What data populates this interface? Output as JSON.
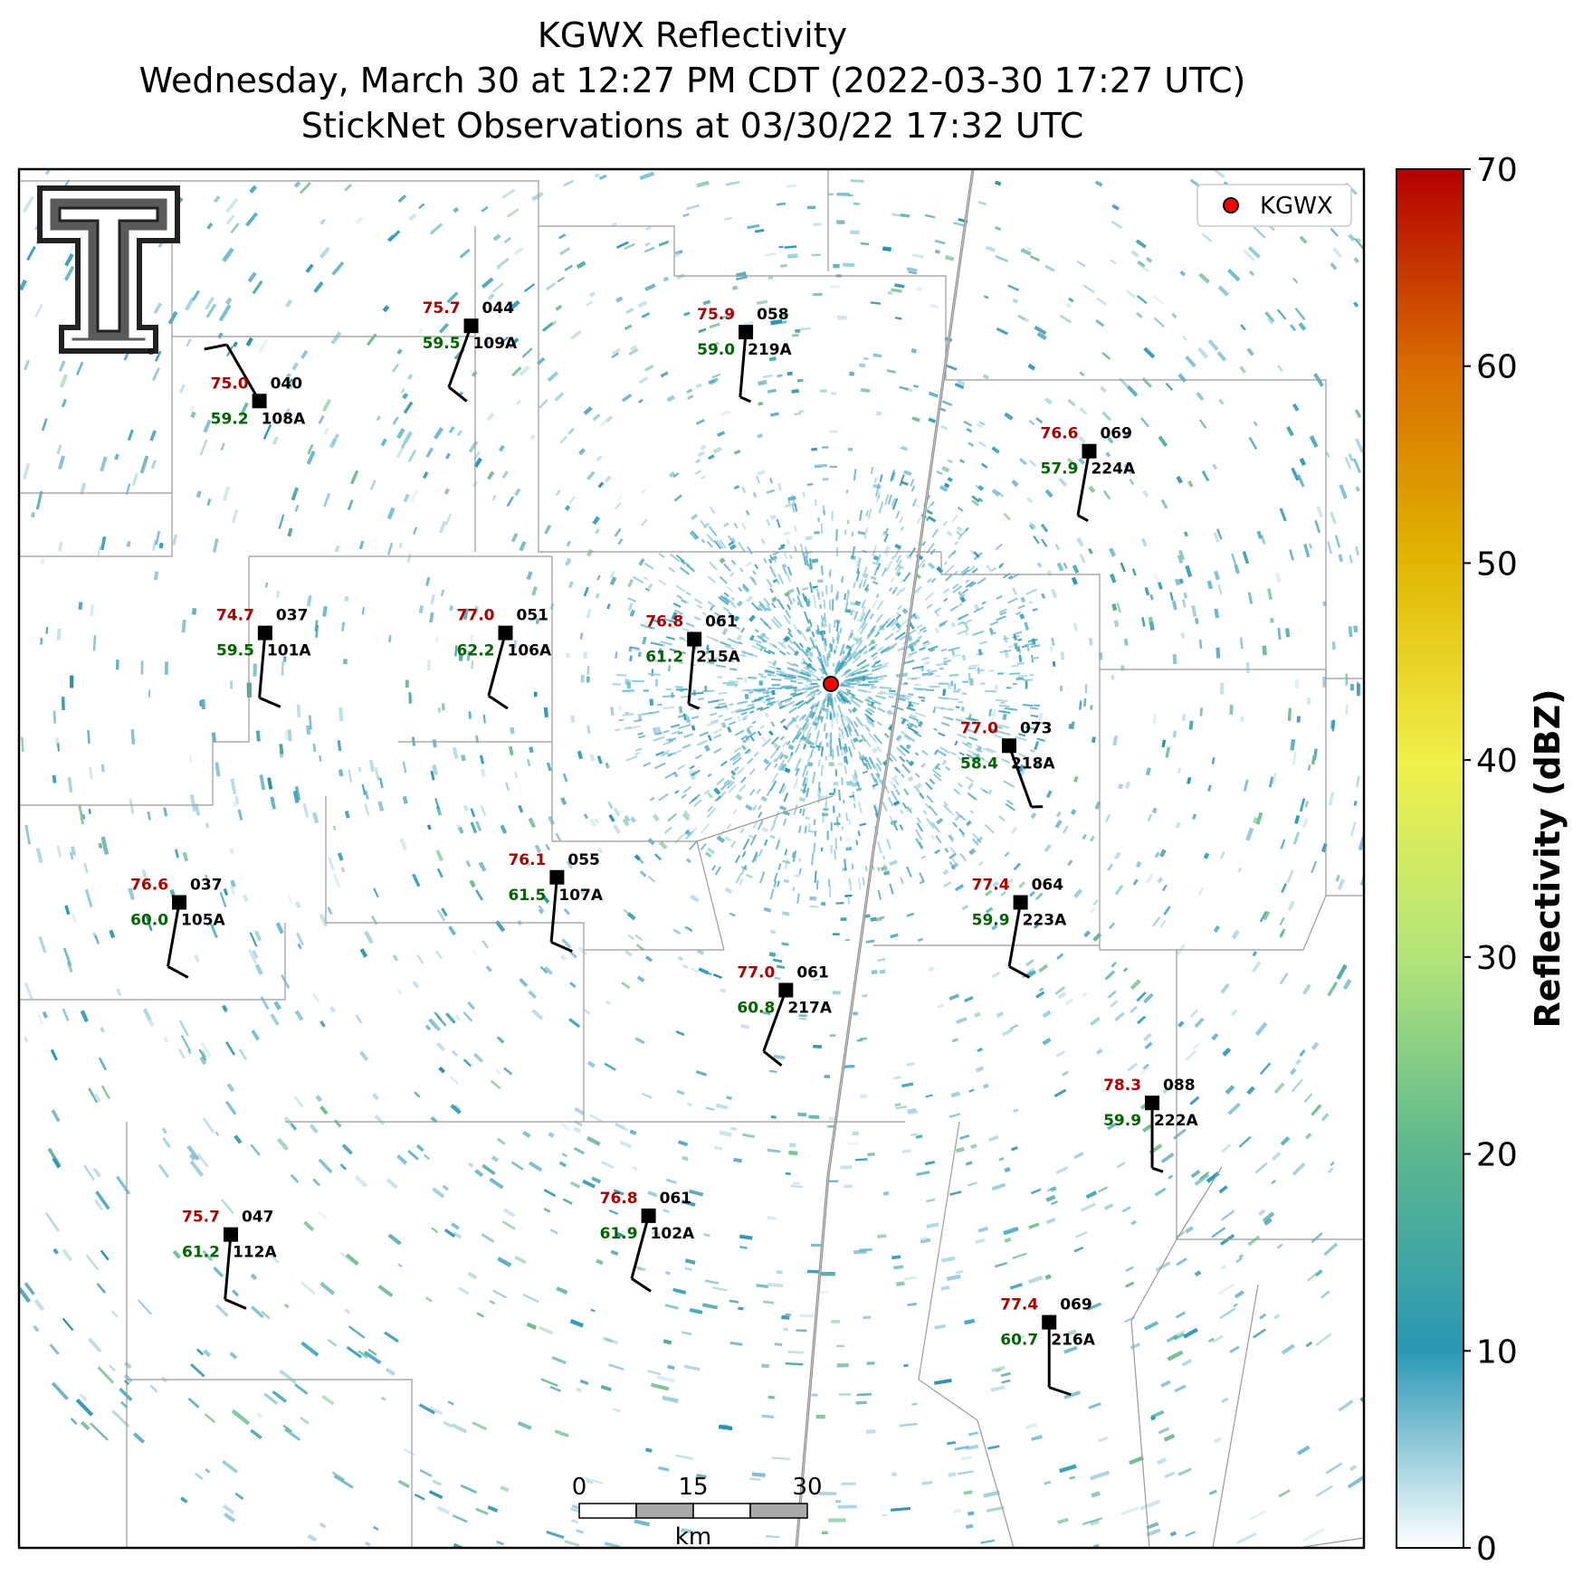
{
  "title": {
    "line1": "KGWX Reflectivity",
    "line2": "Wednesday, March 30 at 12:27 PM CDT (2022-03-30 17:27 UTC)",
    "line3": "StickNet Observations at 03/30/22 17:32 UTC"
  },
  "logo": {
    "name": "texas-tech-double-t-logo",
    "registered_mark": "®"
  },
  "legend": {
    "label": "KGWX",
    "marker_color": "#ff0000"
  },
  "radar": {
    "name": "KGWX"
  },
  "colorbar": {
    "label": "Reflectivity (dBZ)",
    "min": 0,
    "max": 70,
    "ticks": [
      "0",
      "10",
      "20",
      "30",
      "40",
      "50",
      "60",
      "70"
    ],
    "stops": [
      "#ffffff",
      "#2a97b5",
      "#5bb78e",
      "#b3e57a",
      "#f0f04a",
      "#e0b400",
      "#d86a00",
      "#b40000"
    ]
  },
  "colors": {
    "temp": "#aa0000",
    "dewpoint": "#006400",
    "station": "#000000"
  },
  "scalebar": {
    "labels": [
      "0",
      "15",
      "30"
    ],
    "unit": "km"
  },
  "stations": [
    {
      "temp": "75.0",
      "dew": "59.2",
      "pres": "040",
      "id": "108A",
      "lon": -89.48,
      "lat": 34.08,
      "wind_dir": 330,
      "wind_kt": 10
    },
    {
      "temp": "75.7",
      "dew": "59.5",
      "pres": "044",
      "id": "109A",
      "lon": -89.11,
      "lat": 34.2,
      "wind_dir": 200,
      "wind_kt": 10
    },
    {
      "temp": "75.9",
      "dew": "59.0",
      "pres": "058",
      "id": "219A",
      "lon": -88.63,
      "lat": 34.19,
      "wind_dir": 185,
      "wind_kt": 8
    },
    {
      "temp": "76.6",
      "dew": "57.9",
      "pres": "069",
      "id": "224A",
      "lon": -88.03,
      "lat": 34.0,
      "wind_dir": 190,
      "wind_kt": 8
    },
    {
      "temp": "74.7",
      "dew": "59.5",
      "pres": "037",
      "id": "101A",
      "lon": -89.47,
      "lat": 33.71,
      "wind_dir": 185,
      "wind_kt": 10
    },
    {
      "temp": "77.0",
      "dew": "62.2",
      "pres": "051",
      "id": "106A",
      "lon": -89.05,
      "lat": 33.71,
      "wind_dir": 195,
      "wind_kt": 10
    },
    {
      "temp": "76.8",
      "dew": "61.2",
      "pres": "061",
      "id": "215A",
      "lon": -88.72,
      "lat": 33.7,
      "wind_dir": 185,
      "wind_kt": 8
    },
    {
      "temp": "77.0",
      "dew": "58.4",
      "pres": "073",
      "id": "218A",
      "lon": -88.17,
      "lat": 33.53,
      "wind_dir": 160,
      "wind_kt": 8
    },
    {
      "temp": "76.1",
      "dew": "61.5",
      "pres": "055",
      "id": "107A",
      "lon": -88.96,
      "lat": 33.32,
      "wind_dir": 185,
      "wind_kt": 10
    },
    {
      "temp": "76.6",
      "dew": "60.0",
      "pres": "037",
      "id": "105A",
      "lon": -89.62,
      "lat": 33.28,
      "wind_dir": 190,
      "wind_kt": 10
    },
    {
      "temp": "77.4",
      "dew": "59.9",
      "pres": "064",
      "id": "223A",
      "lon": -88.15,
      "lat": 33.28,
      "wind_dir": 190,
      "wind_kt": 10
    },
    {
      "temp": "77.0",
      "dew": "60.8",
      "pres": "061",
      "id": "217A",
      "lon": -88.56,
      "lat": 33.14,
      "wind_dir": 200,
      "wind_kt": 10
    },
    {
      "temp": "78.3",
      "dew": "59.9",
      "pres": "088",
      "id": "222A",
      "lon": -87.92,
      "lat": 32.96,
      "wind_dir": 180,
      "wind_kt": 8
    },
    {
      "temp": "75.7",
      "dew": "61.2",
      "pres": "047",
      "id": "112A",
      "lon": -89.53,
      "lat": 32.75,
      "wind_dir": 185,
      "wind_kt": 10
    },
    {
      "temp": "76.8",
      "dew": "61.9",
      "pres": "061",
      "id": "102A",
      "lon": -88.8,
      "lat": 32.78,
      "wind_dir": 195,
      "wind_kt": 10
    },
    {
      "temp": "77.4",
      "dew": "60.7",
      "pres": "069",
      "id": "216A",
      "lon": -88.1,
      "lat": 32.61,
      "wind_dir": 180,
      "wind_kt": 10
    }
  ]
}
